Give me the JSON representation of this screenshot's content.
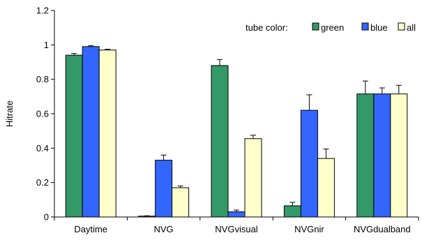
{
  "chart_data": {
    "type": "bar",
    "title": "",
    "xlabel": "",
    "ylabel": "Hitrate",
    "ylim": [
      0,
      1.2
    ],
    "yticks": [
      0,
      0.2,
      0.4,
      0.6,
      0.8,
      1,
      1.2
    ],
    "ytick_labels": [
      "0",
      "0.2",
      "0.4",
      "0.6",
      "0.8",
      "1",
      "1.2"
    ],
    "grid": false,
    "legend": {
      "title": "tube color:",
      "placement": "top-right"
    },
    "categories": [
      "Daytime",
      "NVG",
      "NVGvisual",
      "NVGnir",
      "NVGdualband"
    ],
    "series": [
      {
        "name": "green",
        "color": "#339966",
        "values": [
          0.94,
          0.005,
          0.88,
          0.065,
          0.715
        ],
        "errors": [
          0.01,
          0.002,
          0.035,
          0.02,
          0.075
        ]
      },
      {
        "name": "blue",
        "color": "#3366ff",
        "values": [
          0.99,
          0.33,
          0.03,
          0.62,
          0.715
        ],
        "errors": [
          0.005,
          0.03,
          0.01,
          0.09,
          0.035
        ]
      },
      {
        "name": "all",
        "color": "#ffffcc",
        "values": [
          0.97,
          0.17,
          0.455,
          0.34,
          0.715
        ],
        "errors": [
          0.005,
          0.01,
          0.02,
          0.055,
          0.05
        ]
      }
    ]
  }
}
